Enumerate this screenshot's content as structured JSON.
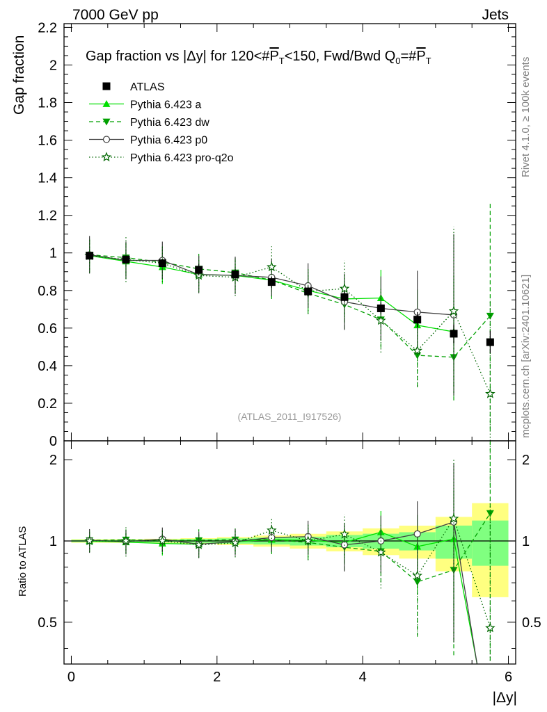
{
  "header": {
    "left": "7000 GeV pp",
    "right": "Jets"
  },
  "side_labels": {
    "rivet": "Rivet 4.1.0, ≥ 100k events",
    "mcplots": "mcplots.cern.ch [arXiv:2401.10621]"
  },
  "colors": {
    "a": "#00e000",
    "dw": "#00a000",
    "p0": "#404040",
    "proq2o": "#006600",
    "data": "#000000",
    "band_yellow": "#ffff80",
    "band_green": "#80ff80"
  },
  "chart_data": {
    "type": "line",
    "title_prefix": "Gap fraction vs |Δy| for 120<#",
    "title_pt": "P",
    "title_sub": "T",
    "title_mid": "<150, Fwd/Bwd Q",
    "title_sub0": "0",
    "title_eq": "=#",
    "watermark": "(ATLAS_2011_I917526)",
    "ylabel": "Gap fraction",
    "xlabel": "|Δy|",
    "ratio_ylabel": "Ratio to ATLAS",
    "xlim": [
      -0.1,
      6.1
    ],
    "ylim": [
      0,
      2.22
    ],
    "ratio_ylim": [
      0.35,
      2.35
    ],
    "x_ticks": [
      "0",
      "2",
      "4",
      "6"
    ],
    "y_ticks": [
      "0",
      "0.2",
      "0.4",
      "0.6",
      "0.8",
      "1",
      "1.2",
      "1.4",
      "1.6",
      "1.8",
      "2",
      "2.2"
    ],
    "ratio_ticks": [
      "0.5",
      "1",
      "2"
    ],
    "x": [
      0.25,
      0.75,
      1.25,
      1.75,
      2.25,
      2.75,
      3.25,
      3.75,
      4.25,
      4.75,
      5.25,
      5.75
    ],
    "data": {
      "name": "ATLAS",
      "values": [
        0.985,
        0.965,
        0.945,
        0.91,
        0.885,
        0.845,
        0.795,
        0.765,
        0.705,
        0.645,
        0.57,
        0.525
      ],
      "errors": [
        0.02,
        0.02,
        0.02,
        0.03,
        0.03,
        0.03,
        0.03,
        0.03,
        0.03,
        0.04,
        0.05,
        0.06
      ]
    },
    "band_stat": [
      0.01,
      0.01,
      0.012,
      0.015,
      0.02,
      0.025,
      0.03,
      0.04,
      0.045,
      0.05,
      0.08,
      0.1
    ],
    "band_tot": [
      0.015,
      0.015,
      0.018,
      0.022,
      0.03,
      0.04,
      0.05,
      0.065,
      0.08,
      0.09,
      0.13,
      0.2
    ],
    "series": [
      {
        "name": "Pythia 6.423 a",
        "key": "a",
        "marker": "triangle-up",
        "dash": "",
        "values": [
          0.985,
          0.955,
          0.925,
          0.885,
          0.88,
          0.855,
          0.8,
          0.755,
          0.76,
          0.615,
          0.58,
          null
        ],
        "errors": [
          0.09,
          0.09,
          0.09,
          0.09,
          0.09,
          0.09,
          0.11,
          0.13,
          0.15,
          0.19,
          0.3,
          null
        ]
      },
      {
        "name": "Pythia 6.423 dw",
        "key": "dw",
        "marker": "triangle-down",
        "dash": "6,4",
        "values": [
          0.99,
          0.975,
          0.95,
          0.915,
          0.895,
          0.855,
          0.785,
          0.725,
          0.645,
          0.455,
          0.445,
          0.665
        ],
        "errors": [
          0.09,
          0.09,
          0.09,
          0.09,
          0.09,
          0.1,
          0.11,
          0.13,
          0.15,
          0.17,
          0.23,
          0.61
        ]
      },
      {
        "name": "Pythia 6.423 p0",
        "key": "p0",
        "marker": "circle-open",
        "dash": "",
        "values": [
          0.99,
          0.96,
          0.96,
          0.885,
          0.88,
          0.87,
          0.825,
          0.74,
          0.705,
          0.685,
          0.67,
          null
        ],
        "errors": [
          0.1,
          0.1,
          0.1,
          0.1,
          0.1,
          0.1,
          0.12,
          0.15,
          0.17,
          0.22,
          0.43,
          null
        ]
      },
      {
        "name": "Pythia 6.423 pro-q2o",
        "key": "proq2o",
        "marker": "star-open",
        "dash": "1.5,3",
        "values": [
          0.985,
          0.965,
          0.945,
          0.88,
          0.87,
          0.925,
          0.795,
          0.81,
          0.64,
          0.48,
          0.69,
          0.25
        ],
        "errors": [
          0.09,
          0.12,
          0.1,
          0.09,
          0.1,
          0.11,
          0.12,
          0.15,
          0.17,
          0.19,
          0.45,
          0.5
        ]
      }
    ]
  }
}
